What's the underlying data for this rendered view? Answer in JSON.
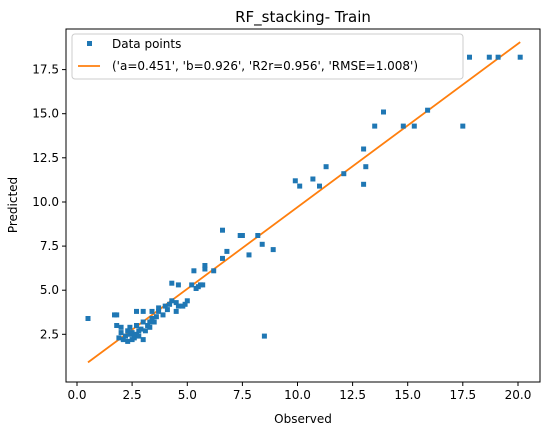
{
  "chart_data": {
    "type": "scatter",
    "title": "RF_stacking- Train",
    "xlabel": "Observed",
    "ylabel": "Predicted",
    "xlim": [
      -0.5,
      21.0
    ],
    "ylim": [
      -0.2,
      19.8
    ],
    "xticks": [
      0.0,
      2.5,
      5.0,
      7.5,
      10.0,
      12.5,
      15.0,
      17.5,
      20.0
    ],
    "yticks": [
      2.5,
      5.0,
      7.5,
      10.0,
      12.5,
      15.0,
      17.5
    ],
    "xtick_labels": [
      "0.0",
      "2.5",
      "5.0",
      "7.5",
      "10.0",
      "12.5",
      "15.0",
      "17.5",
      "20.0"
    ],
    "ytick_labels": [
      "2.5",
      "5.0",
      "7.5",
      "10.0",
      "12.5",
      "15.0",
      "17.5"
    ],
    "grid": false,
    "legend_position": "top-left",
    "legend": [
      {
        "label": "Data points",
        "marker": "square",
        "color": "#1f77b4"
      },
      {
        "label": "('a=0.451', 'b=0.926', 'R2r=0.956', 'RMSE=1.008')",
        "marker": "line",
        "color": "#ff7f0e"
      }
    ],
    "series": [
      {
        "name": "Data points",
        "kind": "scatter",
        "color": "#1f77b4",
        "points": [
          [
            0.5,
            3.4
          ],
          [
            1.7,
            3.6
          ],
          [
            1.8,
            3.6
          ],
          [
            1.8,
            3.0
          ],
          [
            1.9,
            2.3
          ],
          [
            2.0,
            2.6
          ],
          [
            2.0,
            2.9
          ],
          [
            2.1,
            2.2
          ],
          [
            2.2,
            2.4
          ],
          [
            2.3,
            2.1
          ],
          [
            2.3,
            2.7
          ],
          [
            2.4,
            2.5
          ],
          [
            2.4,
            2.9
          ],
          [
            2.5,
            2.2
          ],
          [
            2.5,
            2.6
          ],
          [
            2.6,
            2.4
          ],
          [
            2.6,
            2.3
          ],
          [
            2.7,
            2.5
          ],
          [
            2.7,
            3.0
          ],
          [
            2.7,
            3.8
          ],
          [
            2.8,
            2.7
          ],
          [
            2.8,
            2.4
          ],
          [
            2.9,
            2.8
          ],
          [
            3.0,
            2.2
          ],
          [
            3.0,
            3.2
          ],
          [
            3.0,
            3.8
          ],
          [
            3.1,
            2.7
          ],
          [
            3.2,
            3.0
          ],
          [
            3.3,
            3.2
          ],
          [
            3.3,
            2.9
          ],
          [
            3.4,
            3.4
          ],
          [
            3.4,
            3.8
          ],
          [
            3.5,
            3.2
          ],
          [
            3.6,
            3.5
          ],
          [
            3.7,
            3.8
          ],
          [
            3.7,
            4.0
          ],
          [
            3.9,
            3.6
          ],
          [
            4.0,
            4.1
          ],
          [
            4.1,
            3.9
          ],
          [
            4.2,
            4.2
          ],
          [
            4.3,
            4.4
          ],
          [
            4.3,
            5.4
          ],
          [
            4.5,
            4.3
          ],
          [
            4.5,
            3.8
          ],
          [
            4.6,
            4.1
          ],
          [
            4.6,
            5.3
          ],
          [
            4.8,
            4.1
          ],
          [
            4.9,
            4.2
          ],
          [
            5.0,
            4.4
          ],
          [
            5.2,
            5.3
          ],
          [
            5.3,
            6.1
          ],
          [
            5.4,
            5.1
          ],
          [
            5.5,
            5.2
          ],
          [
            5.6,
            5.3
          ],
          [
            5.7,
            5.3
          ],
          [
            5.8,
            6.2
          ],
          [
            5.8,
            6.4
          ],
          [
            6.2,
            6.1
          ],
          [
            6.6,
            6.8
          ],
          [
            6.6,
            8.4
          ],
          [
            6.8,
            7.2
          ],
          [
            7.4,
            8.1
          ],
          [
            7.5,
            8.1
          ],
          [
            7.8,
            7.0
          ],
          [
            8.2,
            8.1
          ],
          [
            8.4,
            7.6
          ],
          [
            8.5,
            2.4
          ],
          [
            8.9,
            7.3
          ],
          [
            9.9,
            11.2
          ],
          [
            10.1,
            10.9
          ],
          [
            10.7,
            11.3
          ],
          [
            11.0,
            10.9
          ],
          [
            11.3,
            12.0
          ],
          [
            12.1,
            11.6
          ],
          [
            13.0,
            11.0
          ],
          [
            13.0,
            13.0
          ],
          [
            13.1,
            12.0
          ],
          [
            13.5,
            14.3
          ],
          [
            13.9,
            15.1
          ],
          [
            14.8,
            14.3
          ],
          [
            15.3,
            14.3
          ],
          [
            15.9,
            15.2
          ],
          [
            17.5,
            14.3
          ],
          [
            17.8,
            18.2
          ],
          [
            18.7,
            18.2
          ],
          [
            19.1,
            18.2
          ],
          [
            20.1,
            18.2
          ]
        ]
      },
      {
        "name": "('a=0.451', 'b=0.926', 'R2r=0.956', 'RMSE=1.008')",
        "kind": "line",
        "color": "#ff7f0e",
        "x": [
          0.5,
          20.1
        ],
        "y": [
          0.91,
          19.06
        ]
      }
    ]
  }
}
